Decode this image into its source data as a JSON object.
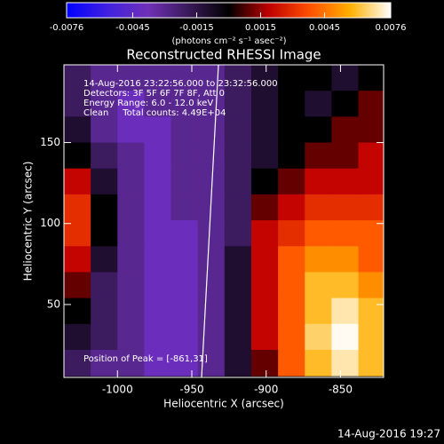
{
  "chart_data": {
    "type": "heatmap",
    "title": "Reconstructed RHESSI Image",
    "info_lines": [
      "14-Aug-2016 23:22:56.000 to 23:32:56.000",
      "Detectors: 3F 5F 6F 7F 8F, Att 0",
      "Energy Range: 6.0 - 12.0 keV",
      "Clean     Total counts: 4.49E+04"
    ],
    "peak_label": "Position of Peak = [-861,31]",
    "x_label": "Heliocentric X (arcsec)",
    "y_label": "Heliocentric Y (arcsec)",
    "colorbar_label": "(photons cm⁻² s⁻¹ asec⁻²)",
    "timestamp": "14-Aug-2016 19:27",
    "xlim": [
      -1036,
      -821
    ],
    "xticks": [
      -1000,
      -950,
      -900,
      -850
    ],
    "ylim": [
      5,
      198
    ],
    "yticks": [
      50,
      100,
      150
    ],
    "zlim": [
      -0.0076,
      0.0076
    ],
    "zticks": [
      -0.0076,
      -0.0045,
      -0.0015,
      0.0015,
      0.0045,
      0.0076
    ],
    "colormap": [
      "#0000ff",
      "#4020e0",
      "#7030b8",
      "#3a1a5a",
      "#000000",
      "#c00000",
      "#ff5000",
      "#ffb000",
      "#ffffff"
    ],
    "x": [
      -1027,
      -1009,
      -991,
      -973,
      -955,
      -937,
      -919,
      -901,
      -883,
      -865,
      -847,
      -829
    ],
    "y": [
      190,
      174,
      158,
      142,
      126,
      110,
      94,
      78,
      62,
      46,
      30,
      14
    ],
    "z": [
      [
        -0.002,
        -0.003,
        -0.003,
        -0.003,
        -0.003,
        -0.003,
        -0.002,
        -0.001,
        0,
        0,
        -0.001,
        0
      ],
      [
        -0.002,
        -0.003,
        -0.004,
        -0.003,
        -0.003,
        -0.003,
        -0.002,
        -0.001,
        0,
        -0.001,
        0,
        0.001
      ],
      [
        -0.001,
        -0.003,
        -0.004,
        -0.004,
        -0.003,
        -0.003,
        -0.002,
        -0.001,
        0,
        0,
        0.001,
        0.001
      ],
      [
        0,
        -0.002,
        -0.003,
        -0.004,
        -0.003,
        -0.003,
        -0.002,
        -0.001,
        0,
        0.001,
        0.001,
        0.002
      ],
      [
        0.002,
        -0.001,
        -0.003,
        -0.004,
        -0.003,
        -0.003,
        -0.002,
        0,
        0.001,
        0.002,
        0.002,
        0.002
      ],
      [
        0.003,
        0,
        -0.003,
        -0.004,
        -0.003,
        -0.003,
        -0.002,
        0.001,
        0.002,
        0.003,
        0.003,
        0.003
      ],
      [
        0.003,
        0,
        -0.003,
        -0.004,
        -0.004,
        -0.003,
        -0.002,
        0.002,
        0.003,
        0.004,
        0.004,
        0.004
      ],
      [
        0.002,
        -0.001,
        -0.003,
        -0.004,
        -0.004,
        -0.003,
        -0.001,
        0.002,
        0.004,
        0.005,
        0.005,
        0.004
      ],
      [
        0.001,
        -0.002,
        -0.003,
        -0.004,
        -0.004,
        -0.003,
        -0.001,
        0.002,
        0.004,
        0.006,
        0.006,
        0.005
      ],
      [
        0,
        -0.002,
        -0.003,
        -0.004,
        -0.004,
        -0.003,
        -0.001,
        0.002,
        0.004,
        0.006,
        0.007,
        0.006
      ],
      [
        -0.001,
        -0.002,
        -0.003,
        -0.004,
        -0.004,
        -0.003,
        -0.001,
        0.002,
        0.004,
        0.0065,
        0.0075,
        0.006
      ],
      [
        -0.002,
        -0.003,
        -0.003,
        -0.004,
        -0.004,
        -0.003,
        -0.001,
        0.001,
        0.004,
        0.006,
        0.007,
        0.006
      ]
    ]
  }
}
